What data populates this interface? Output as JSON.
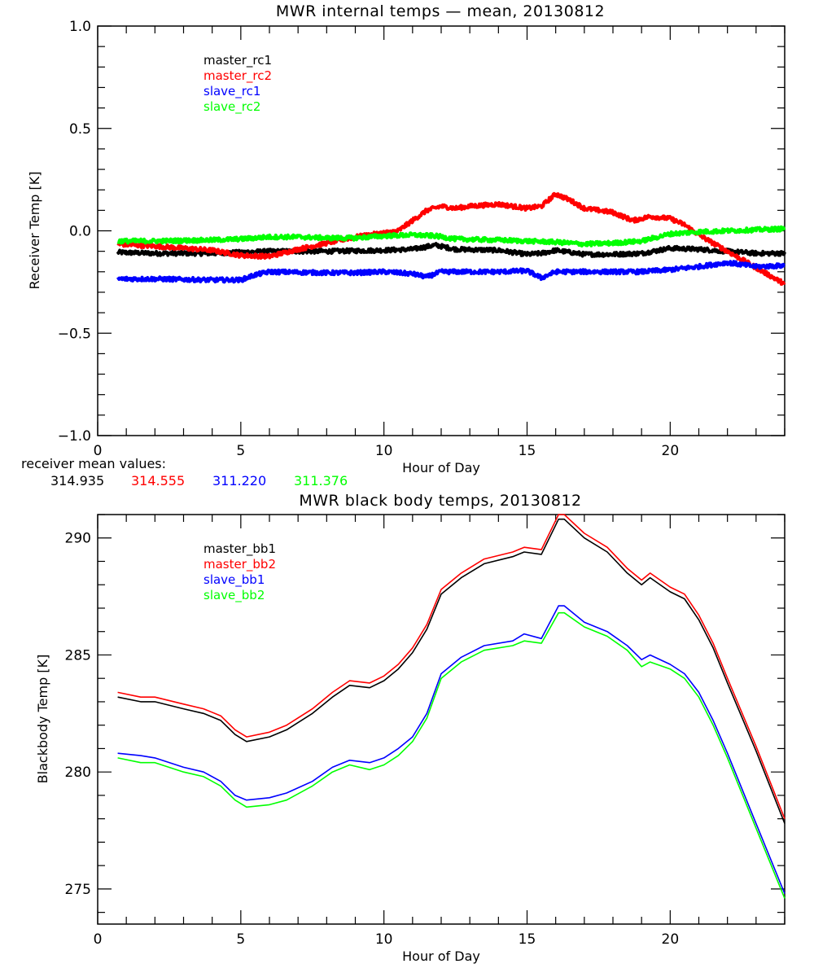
{
  "chart_data": [
    {
      "type": "line",
      "title": "MWR internal temps — mean, 20130812",
      "xlabel": "Hour of Day",
      "ylabel": "Receiver Temp [K]",
      "xlim": [
        0,
        24
      ],
      "ylim": [
        -1.0,
        1.0
      ],
      "xticks": [
        0,
        5,
        10,
        15,
        20
      ],
      "xtick_labels": [
        "0",
        "5",
        "10",
        "15",
        "20"
      ],
      "yticks": [
        -1.0,
        -0.5,
        0.0,
        0.5,
        1.0
      ],
      "ytick_labels": [
        "−1.0",
        "−0.5",
        "0.0",
        "0.5",
        "1.0"
      ],
      "grid": false,
      "legend_position": "top-left",
      "series": [
        {
          "name": "master_rc1",
          "color": "#000000",
          "noisy": true,
          "x": [
            0.7,
            2,
            4,
            5,
            6,
            8,
            10,
            11,
            11.8,
            12.5,
            14,
            15,
            15.5,
            16,
            17,
            18,
            19,
            20,
            21,
            22,
            23,
            24
          ],
          "y": [
            -0.105,
            -0.11,
            -0.11,
            -0.105,
            -0.1,
            -0.1,
            -0.095,
            -0.09,
            -0.07,
            -0.09,
            -0.095,
            -0.115,
            -0.11,
            -0.095,
            -0.115,
            -0.115,
            -0.11,
            -0.085,
            -0.09,
            -0.1,
            -0.11,
            -0.11
          ]
        },
        {
          "name": "master_rc2",
          "color": "#ff0000",
          "noisy": true,
          "x": [
            0.7,
            2,
            4,
            5,
            6,
            7,
            8,
            9,
            10,
            10.5,
            11,
            11.5,
            12,
            12.5,
            13,
            14,
            15,
            15.5,
            16,
            16.5,
            17,
            18,
            18.7,
            19.3,
            20,
            20.5,
            21,
            21.5,
            22,
            23,
            24
          ],
          "y": [
            -0.065,
            -0.075,
            -0.095,
            -0.12,
            -0.125,
            -0.09,
            -0.06,
            -0.03,
            -0.01,
            0.0,
            0.05,
            0.1,
            0.12,
            0.11,
            0.12,
            0.13,
            0.11,
            0.12,
            0.18,
            0.15,
            0.11,
            0.09,
            0.05,
            0.07,
            0.06,
            0.03,
            -0.02,
            -0.06,
            -0.1,
            -0.18,
            -0.26
          ]
        },
        {
          "name": "slave_rc1",
          "color": "#0000ff",
          "noisy": true,
          "x": [
            0.7,
            2,
            4,
            5,
            5.5,
            6,
            8,
            9,
            10,
            11,
            11.5,
            12,
            13,
            14,
            15,
            15.5,
            16,
            17,
            19,
            20,
            21,
            22,
            23,
            24
          ],
          "y": [
            -0.235,
            -0.235,
            -0.24,
            -0.24,
            -0.215,
            -0.2,
            -0.205,
            -0.205,
            -0.2,
            -0.21,
            -0.225,
            -0.2,
            -0.2,
            -0.2,
            -0.195,
            -0.23,
            -0.2,
            -0.2,
            -0.2,
            -0.19,
            -0.175,
            -0.155,
            -0.175,
            -0.17
          ]
        },
        {
          "name": "slave_rc2",
          "color": "#00ff00",
          "noisy": true,
          "x": [
            0.7,
            2,
            4,
            5,
            6,
            7,
            8,
            9,
            10,
            11,
            11.8,
            12.5,
            14,
            15,
            16,
            17,
            18,
            19,
            20,
            21,
            22,
            23,
            24
          ],
          "y": [
            -0.05,
            -0.05,
            -0.045,
            -0.04,
            -0.03,
            -0.03,
            -0.035,
            -0.035,
            -0.025,
            -0.02,
            -0.025,
            -0.04,
            -0.045,
            -0.05,
            -0.055,
            -0.065,
            -0.06,
            -0.05,
            -0.015,
            -0.005,
            0.0,
            0.005,
            0.01
          ]
        }
      ]
    },
    {
      "type": "line",
      "title": "MWR black body temps, 20130812",
      "xlabel": "Hour of Day",
      "ylabel": "Blackbody Temp [K]",
      "xlim": [
        0,
        24
      ],
      "ylim": [
        273.5,
        291.0
      ],
      "xticks": [
        0,
        5,
        10,
        15,
        20
      ],
      "xtick_labels": [
        "0",
        "5",
        "10",
        "15",
        "20"
      ],
      "yticks": [
        275,
        280,
        285,
        290
      ],
      "ytick_labels": [
        "275",
        "280",
        "285",
        "290"
      ],
      "grid": false,
      "legend_position": "top-left",
      "series": [
        {
          "name": "master_bb1",
          "color": "#000000",
          "x": [
            0.7,
            1.5,
            2,
            3,
            3.7,
            4.3,
            4.8,
            5.2,
            6,
            6.6,
            7.5,
            8.2,
            8.8,
            9.5,
            10,
            10.5,
            11,
            11.5,
            12,
            12.7,
            13.5,
            14.5,
            14.9,
            15.5,
            16.1,
            16.3,
            17,
            17.8,
            18.5,
            19,
            19.3,
            20,
            20.5,
            21,
            21.5,
            22,
            23,
            24
          ],
          "y": [
            283.2,
            283.0,
            283.0,
            282.7,
            282.5,
            282.2,
            281.6,
            281.3,
            281.5,
            281.8,
            282.5,
            283.2,
            283.7,
            283.6,
            283.9,
            284.4,
            285.1,
            286.1,
            287.6,
            288.3,
            288.9,
            289.2,
            289.4,
            289.3,
            290.8,
            290.8,
            290.0,
            289.4,
            288.5,
            288.0,
            288.3,
            287.7,
            287.4,
            286.5,
            285.3,
            283.8,
            280.9,
            277.8
          ]
        },
        {
          "name": "master_bb2",
          "color": "#ff0000",
          "x": [
            0.7,
            1.5,
            2,
            3,
            3.7,
            4.3,
            4.8,
            5.2,
            6,
            6.6,
            7.5,
            8.2,
            8.8,
            9.5,
            10,
            10.5,
            11,
            11.5,
            12,
            12.7,
            13.5,
            14.5,
            14.9,
            15.5,
            16.1,
            16.3,
            17,
            17.8,
            18.5,
            19,
            19.3,
            20,
            20.5,
            21,
            21.5,
            22,
            23,
            24
          ],
          "y": [
            283.4,
            283.2,
            283.2,
            282.9,
            282.7,
            282.4,
            281.8,
            281.5,
            281.7,
            282.0,
            282.7,
            283.4,
            283.9,
            283.8,
            284.1,
            284.6,
            285.3,
            286.3,
            287.8,
            288.5,
            289.1,
            289.4,
            289.6,
            289.5,
            291.0,
            291.0,
            290.2,
            289.6,
            288.7,
            288.2,
            288.5,
            287.9,
            287.6,
            286.7,
            285.5,
            284.0,
            281.1,
            278.0
          ]
        },
        {
          "name": "slave_bb1",
          "color": "#0000ff",
          "x": [
            0.7,
            1.5,
            2,
            3,
            3.7,
            4.3,
            4.8,
            5.2,
            6,
            6.6,
            7.5,
            8.2,
            8.8,
            9.5,
            10,
            10.5,
            11,
            11.5,
            12,
            12.7,
            13.5,
            14.5,
            14.9,
            15.5,
            16.1,
            16.3,
            17,
            17.8,
            18.5,
            19,
            19.3,
            20,
            20.5,
            21,
            21.5,
            22,
            23,
            24
          ],
          "y": [
            280.8,
            280.7,
            280.6,
            280.2,
            280.0,
            279.6,
            279.0,
            278.8,
            278.9,
            279.1,
            279.6,
            280.2,
            280.5,
            280.4,
            280.6,
            281.0,
            281.5,
            282.5,
            284.2,
            284.9,
            285.4,
            285.6,
            285.9,
            285.7,
            287.1,
            287.1,
            286.4,
            286.0,
            285.4,
            284.8,
            285.0,
            284.6,
            284.2,
            283.4,
            282.2,
            280.8,
            277.8,
            274.8
          ]
        },
        {
          "name": "slave_bb2",
          "color": "#00ff00",
          "x": [
            0.7,
            1.5,
            2,
            3,
            3.7,
            4.3,
            4.8,
            5.2,
            6,
            6.6,
            7.5,
            8.2,
            8.8,
            9.5,
            10,
            10.5,
            11,
            11.5,
            12,
            12.7,
            13.5,
            14.5,
            14.9,
            15.5,
            16.1,
            16.3,
            17,
            17.8,
            18.5,
            19,
            19.3,
            20,
            20.5,
            21,
            21.5,
            22,
            23,
            24
          ],
          "y": [
            280.6,
            280.4,
            280.4,
            280.0,
            279.8,
            279.4,
            278.8,
            278.5,
            278.6,
            278.8,
            279.4,
            280.0,
            280.3,
            280.1,
            280.3,
            280.7,
            281.3,
            282.3,
            284.0,
            284.7,
            285.2,
            285.4,
            285.6,
            285.5,
            286.8,
            286.8,
            286.2,
            285.8,
            285.2,
            284.5,
            284.7,
            284.4,
            284.0,
            283.2,
            282.0,
            280.6,
            277.6,
            274.6
          ]
        }
      ]
    }
  ],
  "receiver_means": {
    "label": "receiver mean values:",
    "values": [
      {
        "text": "314.935",
        "color": "#000000"
      },
      {
        "text": "314.555",
        "color": "#ff0000"
      },
      {
        "text": "311.220",
        "color": "#0000ff"
      },
      {
        "text": "311.376",
        "color": "#00ff00"
      }
    ]
  }
}
